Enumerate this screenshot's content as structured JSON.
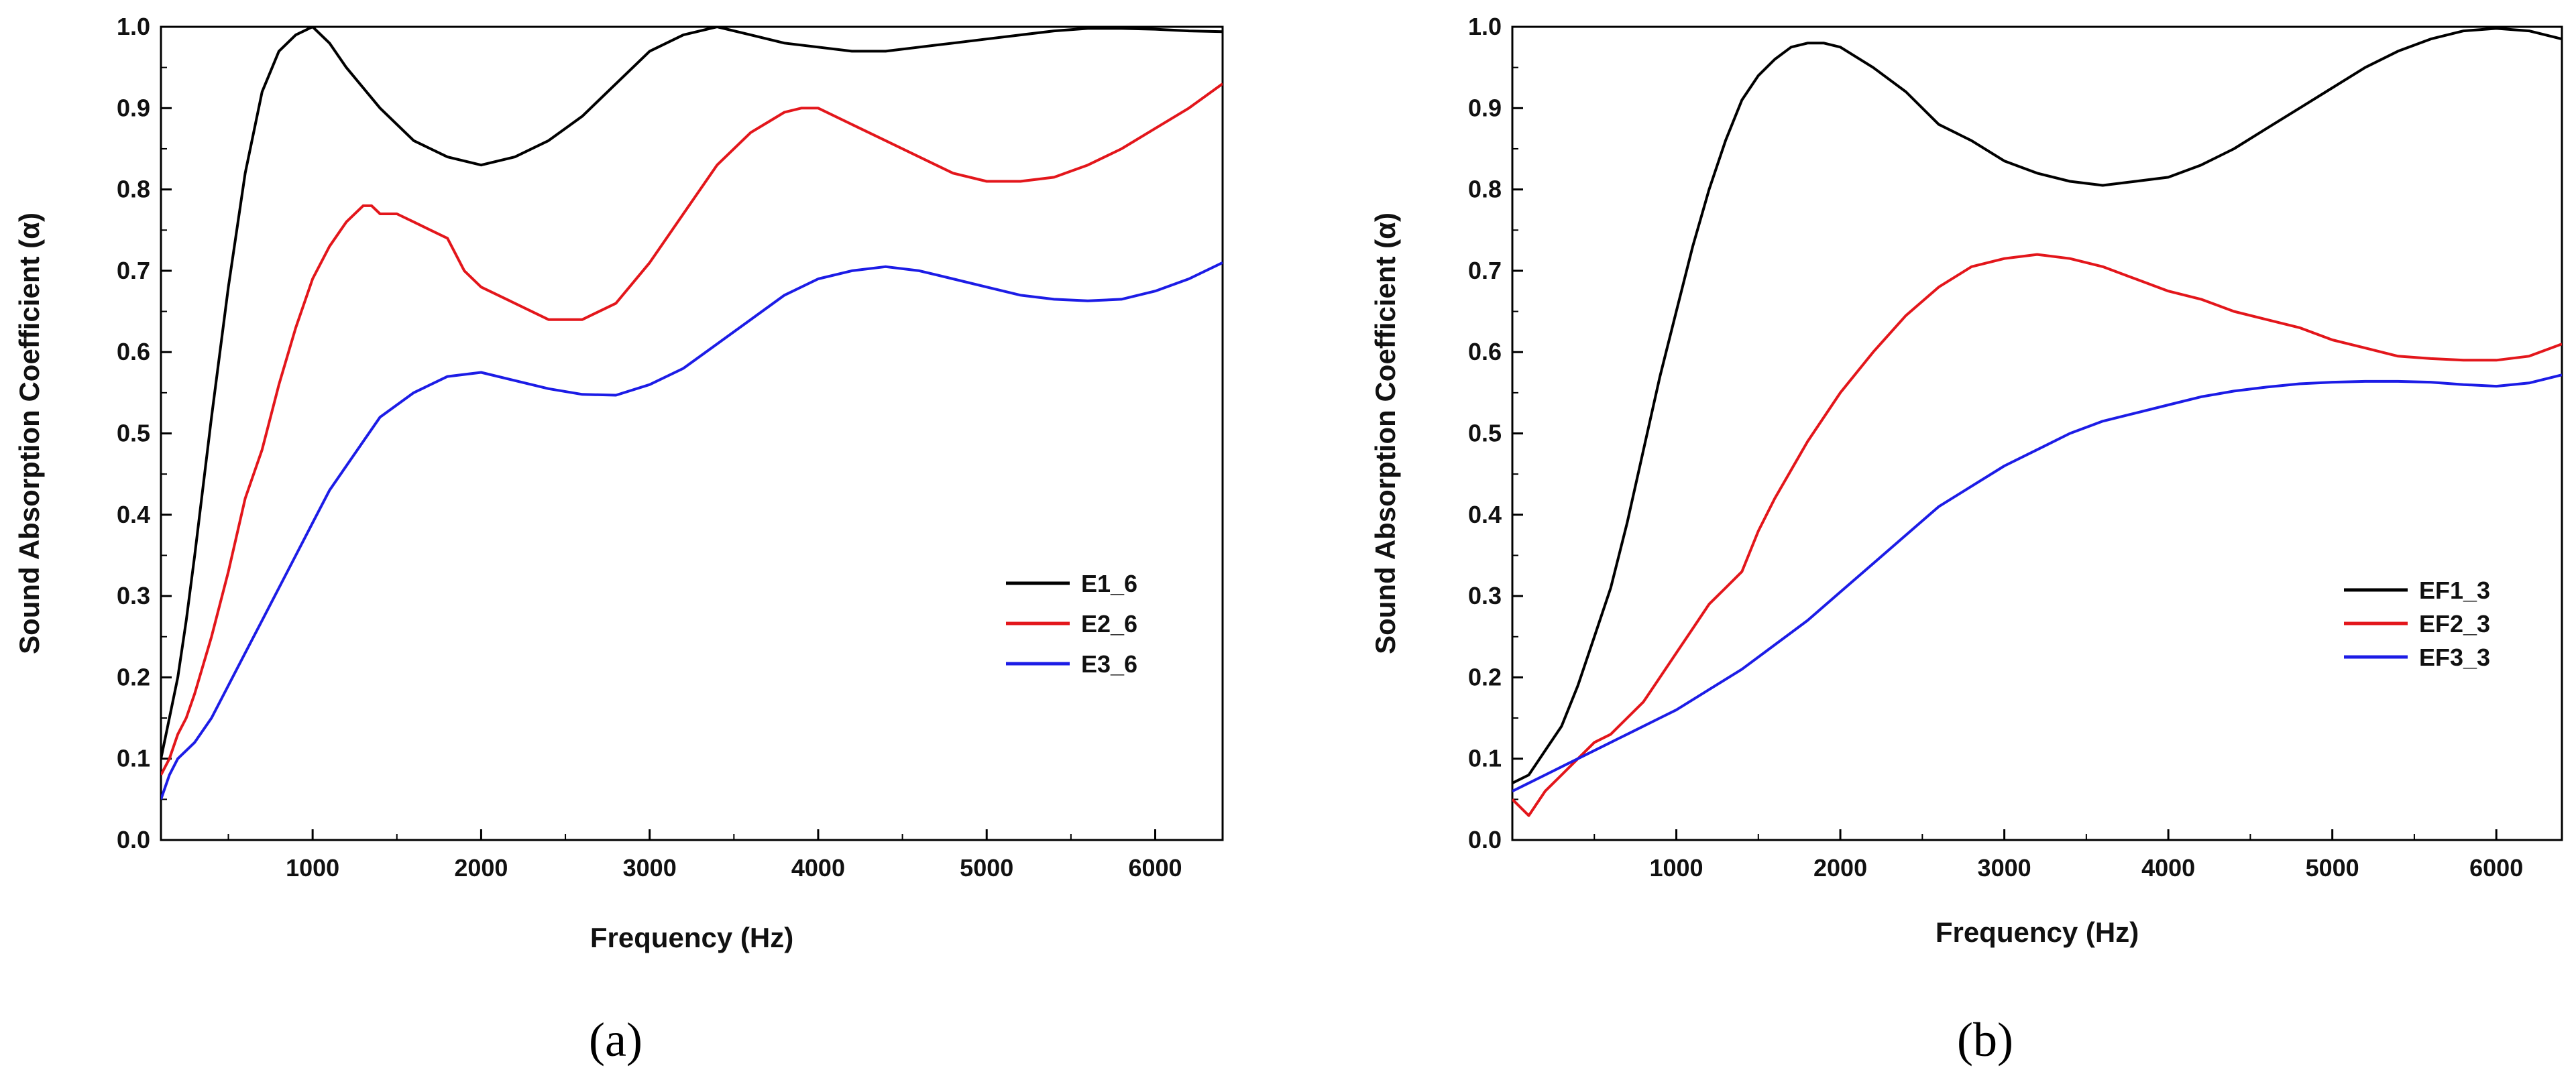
{
  "chart_data": [
    {
      "id": "a",
      "type": "line",
      "caption": "(a)",
      "title": "",
      "xlabel": "Frequency (Hz)",
      "ylabel": "Sound Absorption Coefficient (α)",
      "xlim": [
        100,
        6400
      ],
      "ylim": [
        0,
        1
      ],
      "xticks": [
        1000,
        2000,
        3000,
        4000,
        5000,
        6000
      ],
      "xtick_labels": [
        "1000",
        "2000",
        "3000",
        "4000",
        "5000",
        "6000"
      ],
      "yticks": [
        0,
        0.1,
        0.2,
        0.3,
        0.4,
        0.5,
        0.6,
        0.7,
        0.8,
        0.9,
        1.0
      ],
      "ytick_labels": [
        "0.0",
        "0.1",
        "0.2",
        "0.3",
        "0.4",
        "0.5",
        "0.6",
        "0.7",
        "0.8",
        "0.9",
        "1.0"
      ],
      "grid": false,
      "legend_position": "center-right",
      "series": [
        {
          "name": "E1_6",
          "color": "#000000",
          "x": [
            100,
            150,
            200,
            250,
            300,
            400,
            500,
            600,
            700,
            800,
            900,
            1000,
            1100,
            1200,
            1400,
            1600,
            1800,
            2000,
            2200,
            2400,
            2600,
            2800,
            3000,
            3200,
            3400,
            3600,
            3800,
            4000,
            4200,
            4400,
            4600,
            4800,
            5000,
            5200,
            5400,
            5600,
            5800,
            6000,
            6200,
            6400
          ],
          "y": [
            0.1,
            0.15,
            0.2,
            0.27,
            0.35,
            0.52,
            0.68,
            0.82,
            0.92,
            0.97,
            0.99,
            1.0,
            0.98,
            0.95,
            0.9,
            0.86,
            0.84,
            0.83,
            0.84,
            0.86,
            0.89,
            0.93,
            0.97,
            0.99,
            1.0,
            0.99,
            0.98,
            0.975,
            0.97,
            0.97,
            0.975,
            0.98,
            0.985,
            0.99,
            0.995,
            0.998,
            0.998,
            0.997,
            0.995,
            0.994
          ]
        },
        {
          "name": "E2_6",
          "color": "#e3161b",
          "x": [
            100,
            150,
            200,
            250,
            300,
            400,
            500,
            600,
            700,
            800,
            900,
            1000,
            1100,
            1200,
            1300,
            1350,
            1400,
            1500,
            1600,
            1700,
            1800,
            1900,
            2000,
            2200,
            2400,
            2600,
            2800,
            3000,
            3200,
            3400,
            3600,
            3800,
            3900,
            4000,
            4200,
            4400,
            4600,
            4800,
            5000,
            5200,
            5400,
            5600,
            5800,
            6000,
            6200,
            6400
          ],
          "y": [
            0.08,
            0.1,
            0.13,
            0.15,
            0.18,
            0.25,
            0.33,
            0.42,
            0.48,
            0.56,
            0.63,
            0.69,
            0.73,
            0.76,
            0.78,
            0.78,
            0.77,
            0.77,
            0.76,
            0.75,
            0.74,
            0.7,
            0.68,
            0.66,
            0.64,
            0.64,
            0.66,
            0.71,
            0.77,
            0.83,
            0.87,
            0.895,
            0.9,
            0.9,
            0.88,
            0.86,
            0.84,
            0.82,
            0.81,
            0.81,
            0.815,
            0.83,
            0.85,
            0.875,
            0.9,
            0.93
          ]
        },
        {
          "name": "E3_6",
          "color": "#1c1ce6",
          "x": [
            100,
            150,
            200,
            300,
            400,
            500,
            600,
            700,
            800,
            900,
            1000,
            1100,
            1200,
            1300,
            1400,
            1600,
            1800,
            2000,
            2200,
            2400,
            2600,
            2800,
            3000,
            3200,
            3400,
            3600,
            3800,
            4000,
            4200,
            4400,
            4600,
            4800,
            5000,
            5200,
            5400,
            5600,
            5800,
            6000,
            6200,
            6400
          ],
          "y": [
            0.05,
            0.08,
            0.1,
            0.12,
            0.15,
            0.19,
            0.23,
            0.27,
            0.31,
            0.35,
            0.39,
            0.43,
            0.46,
            0.49,
            0.52,
            0.55,
            0.57,
            0.575,
            0.565,
            0.555,
            0.548,
            0.547,
            0.56,
            0.58,
            0.61,
            0.64,
            0.67,
            0.69,
            0.7,
            0.705,
            0.7,
            0.69,
            0.68,
            0.67,
            0.665,
            0.663,
            0.665,
            0.675,
            0.69,
            0.71
          ]
        }
      ]
    },
    {
      "id": "b",
      "type": "line",
      "caption": "(b)",
      "title": "",
      "xlabel": "Frequency (Hz)",
      "ylabel": "Sound Absorption Coefficient (α)",
      "xlim": [
        0,
        6400
      ],
      "ylim": [
        0,
        1
      ],
      "xticks": [
        1000,
        2000,
        3000,
        4000,
        5000,
        6000
      ],
      "xtick_labels": [
        "1000",
        "2000",
        "3000",
        "4000",
        "5000",
        "6000"
      ],
      "yticks": [
        0,
        0.1,
        0.2,
        0.3,
        0.4,
        0.5,
        0.6,
        0.7,
        0.8,
        0.9,
        1.0
      ],
      "ytick_labels": [
        "0.0",
        "0.1",
        "0.2",
        "0.3",
        "0.4",
        "0.5",
        "0.6",
        "0.7",
        "0.8",
        "0.9",
        "1.0"
      ],
      "grid": false,
      "legend_position": "center-right",
      "series": [
        {
          "name": "EF1_3",
          "color": "#000000",
          "x": [
            0,
            100,
            200,
            300,
            400,
            500,
            600,
            700,
            800,
            900,
            1000,
            1100,
            1200,
            1300,
            1400,
            1500,
            1600,
            1700,
            1800,
            1900,
            2000,
            2200,
            2400,
            2600,
            2800,
            3000,
            3200,
            3400,
            3600,
            3800,
            4000,
            4200,
            4400,
            4600,
            4800,
            5000,
            5200,
            5400,
            5600,
            5800,
            6000,
            6200,
            6400
          ],
          "y": [
            0.07,
            0.08,
            0.11,
            0.14,
            0.19,
            0.25,
            0.31,
            0.39,
            0.48,
            0.57,
            0.65,
            0.73,
            0.8,
            0.86,
            0.91,
            0.94,
            0.96,
            0.975,
            0.98,
            0.98,
            0.975,
            0.95,
            0.92,
            0.88,
            0.86,
            0.835,
            0.82,
            0.81,
            0.805,
            0.81,
            0.815,
            0.83,
            0.85,
            0.875,
            0.9,
            0.925,
            0.95,
            0.97,
            0.985,
            0.995,
            0.998,
            0.995,
            0.985
          ]
        },
        {
          "name": "EF2_3",
          "color": "#e3161b",
          "x": [
            0,
            100,
            200,
            300,
            400,
            500,
            600,
            700,
            800,
            900,
            1000,
            1100,
            1200,
            1300,
            1400,
            1500,
            1600,
            1800,
            2000,
            2200,
            2400,
            2600,
            2800,
            3000,
            3200,
            3400,
            3600,
            3800,
            4000,
            4200,
            4400,
            4600,
            4800,
            5000,
            5200,
            5400,
            5600,
            5800,
            6000,
            6200,
            6400
          ],
          "y": [
            0.05,
            0.03,
            0.06,
            0.08,
            0.1,
            0.12,
            0.13,
            0.15,
            0.17,
            0.2,
            0.23,
            0.26,
            0.29,
            0.31,
            0.33,
            0.38,
            0.42,
            0.49,
            0.55,
            0.6,
            0.645,
            0.68,
            0.705,
            0.715,
            0.72,
            0.715,
            0.705,
            0.69,
            0.675,
            0.665,
            0.65,
            0.64,
            0.63,
            0.615,
            0.605,
            0.595,
            0.592,
            0.59,
            0.59,
            0.595,
            0.61
          ]
        },
        {
          "name": "EF3_3",
          "color": "#1c1ce6",
          "x": [
            0,
            100,
            200,
            300,
            400,
            500,
            600,
            700,
            800,
            900,
            1000,
            1200,
            1400,
            1600,
            1800,
            2000,
            2200,
            2400,
            2600,
            2800,
            3000,
            3200,
            3400,
            3600,
            3800,
            4000,
            4200,
            4400,
            4600,
            4800,
            5000,
            5200,
            5400,
            5600,
            5800,
            6000,
            6200,
            6400
          ],
          "y": [
            0.06,
            0.07,
            0.08,
            0.09,
            0.1,
            0.11,
            0.12,
            0.13,
            0.14,
            0.15,
            0.16,
            0.185,
            0.21,
            0.24,
            0.27,
            0.305,
            0.34,
            0.375,
            0.41,
            0.435,
            0.46,
            0.48,
            0.5,
            0.515,
            0.525,
            0.535,
            0.545,
            0.552,
            0.557,
            0.561,
            0.563,
            0.564,
            0.564,
            0.563,
            0.56,
            0.558,
            0.562,
            0.572
          ]
        }
      ]
    }
  ]
}
